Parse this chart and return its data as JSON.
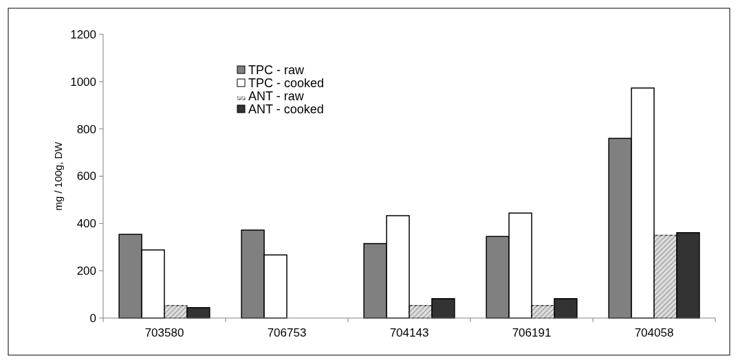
{
  "chart_data": {
    "type": "bar",
    "ylabel": "mg / 100g, DW",
    "categories": [
      "703580",
      "706753",
      "704143",
      "706191",
      "704058"
    ],
    "series": [
      {
        "name": "TPC - raw",
        "color": "#808080",
        "values": [
          354,
          372,
          315,
          345,
          760
        ]
      },
      {
        "name": "TPC - cooked",
        "color": "#ffffff",
        "values": [
          288,
          267,
          433,
          444,
          973
        ]
      },
      {
        "name": "ANT - raw",
        "color": "#a0a0a0",
        "values": [
          53,
          null,
          53,
          53,
          350
        ]
      },
      {
        "name": "ANT - cooked",
        "color": "#333333",
        "values": [
          44,
          null,
          82,
          82,
          361
        ]
      }
    ],
    "ylim": [
      0,
      1200
    ],
    "yticks": [
      0,
      200,
      400,
      600,
      800,
      1000,
      1200
    ],
    "grid": false,
    "legend": "top left"
  }
}
